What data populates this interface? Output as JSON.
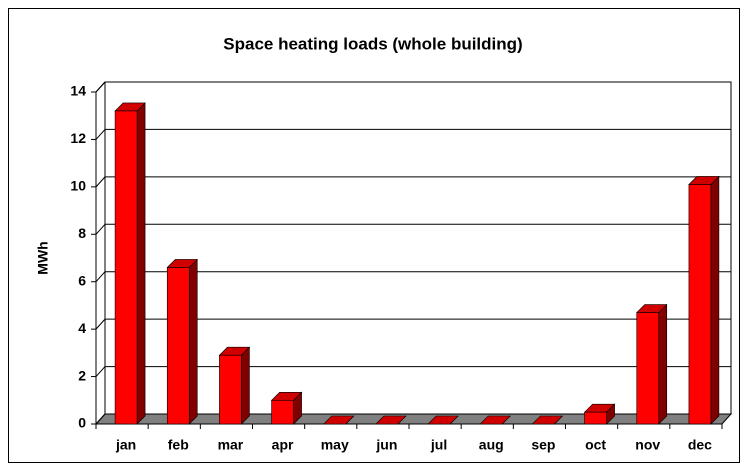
{
  "chart_data": {
    "type": "bar3d",
    "title": "Space heating loads (whole building)",
    "y_label": "MWh",
    "categories": [
      "jan",
      "feb",
      "mar",
      "apr",
      "may",
      "jun",
      "jul",
      "aug",
      "sep",
      "oct",
      "nov",
      "dec"
    ],
    "values": [
      13.2,
      6.6,
      2.9,
      1.0,
      0,
      0,
      0,
      0,
      0,
      0.5,
      4.7,
      10.1
    ],
    "color": "#ff0000",
    "ylim": [
      0,
      14
    ],
    "yticks": [
      0,
      2,
      4,
      6,
      8,
      10,
      12,
      14
    ],
    "grid": true
  }
}
